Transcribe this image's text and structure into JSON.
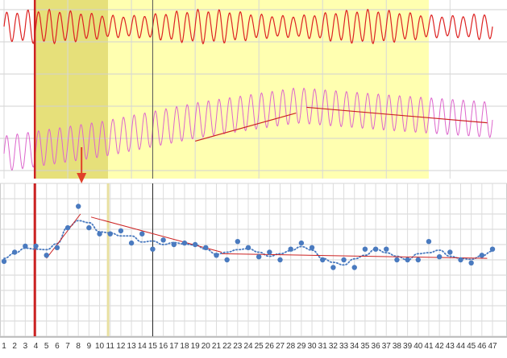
{
  "chart_data": [
    {
      "type": "line",
      "panel": "top",
      "description_free": true,
      "grid": true,
      "x_range": [
        1,
        47
      ],
      "highlight_regions": [
        {
          "x": [
            4,
            10.8
          ],
          "color": "#e6e07a"
        },
        {
          "x": [
            10.8,
            41
          ],
          "color": "#ffffb0"
        }
      ],
      "series": [
        {
          "color": "#dd2222",
          "values": [
            0.5,
            0.85,
            0.15,
            0.9,
            0.1,
            0.9,
            0.15,
            0.85,
            0.1,
            0.9,
            0.2
          ]
        },
        {
          "color": "#dd66cc",
          "values": [
            0.2,
            0.35,
            0.55,
            0.7,
            0.62,
            0.55
          ]
        }
      ],
      "trend_lines": [
        {
          "x": [
            19,
            28.5
          ],
          "y": [
            0.33,
            0.62
          ],
          "color": "#cc2222"
        },
        {
          "x": [
            29.5,
            46.5
          ],
          "y": [
            0.68,
            0.52
          ],
          "color": "#cc2222"
        }
      ],
      "vertical_lines": [
        {
          "x": 3.9,
          "color": "#cc2222"
        },
        {
          "x": 15,
          "color": "#555555"
        }
      ]
    },
    {
      "type": "scatter",
      "panel": "bottom",
      "grid": true,
      "x_ticks": [
        "1",
        "2",
        "3",
        "4",
        "5",
        "6",
        "7",
        "8",
        "9",
        "10",
        "11",
        "12",
        "13",
        "14",
        "15",
        "16",
        "17",
        "18",
        "19",
        "20",
        "21",
        "22",
        "23",
        "24",
        "25",
        "26",
        "27",
        "28",
        "29",
        "30",
        "31",
        "32",
        "33",
        "34",
        "35",
        "36",
        "37",
        "38",
        "39",
        "40",
        "41",
        "42",
        "43",
        "44",
        "45",
        "46",
        "47"
      ],
      "x_range": [
        1,
        47
      ],
      "y_range": [
        0,
        10
      ],
      "point_color": "#4a7abf",
      "points": [
        {
          "x": 1,
          "y": 4.9
        },
        {
          "x": 2,
          "y": 5.5
        },
        {
          "x": 3,
          "y": 5.9
        },
        {
          "x": 4,
          "y": 5.9
        },
        {
          "x": 5,
          "y": 5.3
        },
        {
          "x": 6,
          "y": 5.8
        },
        {
          "x": 7,
          "y": 7.1
        },
        {
          "x": 8,
          "y": 8.5
        },
        {
          "x": 9,
          "y": 7.1
        },
        {
          "x": 10,
          "y": 6.7
        },
        {
          "x": 11,
          "y": 6.7
        },
        {
          "x": 12,
          "y": 6.9
        },
        {
          "x": 13,
          "y": 6.1
        },
        {
          "x": 14,
          "y": 6.7
        },
        {
          "x": 15,
          "y": 5.7
        },
        {
          "x": 16,
          "y": 6.3
        },
        {
          "x": 17,
          "y": 6.0
        },
        {
          "x": 18,
          "y": 6.1
        },
        {
          "x": 19,
          "y": 6.0
        },
        {
          "x": 20,
          "y": 5.8
        },
        {
          "x": 21,
          "y": 5.3
        },
        {
          "x": 22,
          "y": 5.0
        },
        {
          "x": 23,
          "y": 6.2
        },
        {
          "x": 24,
          "y": 5.8
        },
        {
          "x": 25,
          "y": 5.2
        },
        {
          "x": 26,
          "y": 5.5
        },
        {
          "x": 27,
          "y": 5.0
        },
        {
          "x": 28,
          "y": 5.7
        },
        {
          "x": 29,
          "y": 6.1
        },
        {
          "x": 30,
          "y": 5.8
        },
        {
          "x": 31,
          "y": 5.0
        },
        {
          "x": 32,
          "y": 4.5
        },
        {
          "x": 33,
          "y": 5.0
        },
        {
          "x": 34,
          "y": 4.5
        },
        {
          "x": 35,
          "y": 5.7
        },
        {
          "x": 36,
          "y": 5.7
        },
        {
          "x": 37,
          "y": 5.7
        },
        {
          "x": 38,
          "y": 5.0
        },
        {
          "x": 39,
          "y": 5.0
        },
        {
          "x": 40,
          "y": 5.0
        },
        {
          "x": 41,
          "y": 6.2
        },
        {
          "x": 42,
          "y": 5.2
        },
        {
          "x": 43,
          "y": 5.5
        },
        {
          "x": 44,
          "y": 5.0
        },
        {
          "x": 45,
          "y": 4.8
        },
        {
          "x": 46,
          "y": 5.3
        },
        {
          "x": 47,
          "y": 5.7
        }
      ],
      "trend_lines": [
        {
          "x": [
            5,
            8.2
          ],
          "y": [
            5.1,
            8.0
          ],
          "color": "#cc2222"
        },
        {
          "x": [
            9.2,
            21.5
          ],
          "y": [
            7.8,
            5.5
          ],
          "color": "#cc2222"
        },
        {
          "x": [
            21.5,
            46.5
          ],
          "y": [
            5.4,
            5.1
          ],
          "color": "#cc2222"
        }
      ],
      "vertical_lines": [
        {
          "x": 3.9,
          "color": "#cc2222"
        },
        {
          "x": 10.8,
          "color": "#e8e0a0"
        },
        {
          "x": 15,
          "color": "#222222"
        }
      ],
      "marker_arrow": {
        "x": 8.3,
        "color": "#e0402a"
      }
    }
  ]
}
